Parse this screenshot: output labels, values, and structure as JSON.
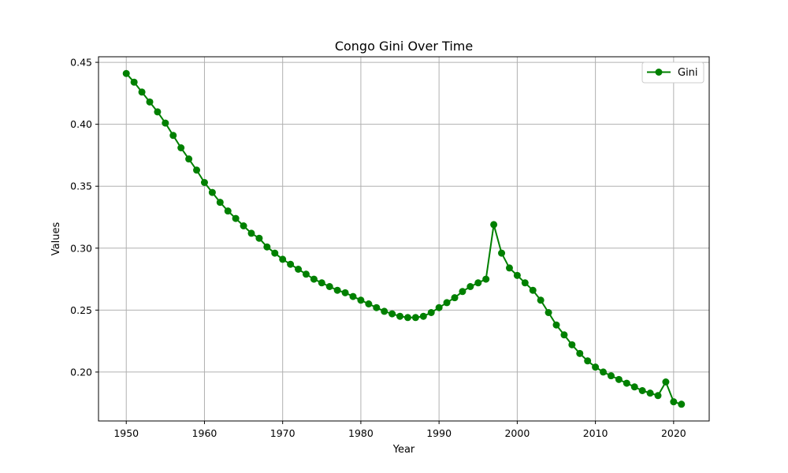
{
  "chart_data": {
    "type": "line",
    "title": "Congo Gini Over Time",
    "xlabel": "Year",
    "ylabel": "Values",
    "xlim": [
      1946.45,
      2024.55
    ],
    "ylim": [
      0.1605,
      0.4545
    ],
    "xticks": [
      1950,
      1960,
      1970,
      1980,
      1990,
      2000,
      2010,
      2020
    ],
    "yticks": [
      0.2,
      0.25,
      0.3,
      0.35,
      0.4,
      0.45
    ],
    "ytick_labels": [
      "0.20",
      "0.25",
      "0.30",
      "0.35",
      "0.40",
      "0.45"
    ],
    "grid": true,
    "legend": "top-right",
    "color": "#008000",
    "series": [
      {
        "name": "Gini",
        "x": [
          1950,
          1951,
          1952,
          1953,
          1954,
          1955,
          1956,
          1957,
          1958,
          1959,
          1960,
          1961,
          1962,
          1963,
          1964,
          1965,
          1966,
          1967,
          1968,
          1969,
          1970,
          1971,
          1972,
          1973,
          1974,
          1975,
          1976,
          1977,
          1978,
          1979,
          1980,
          1981,
          1982,
          1983,
          1984,
          1985,
          1986,
          1987,
          1988,
          1989,
          1990,
          1991,
          1992,
          1993,
          1994,
          1995,
          1996,
          1997,
          1998,
          1999,
          2000,
          2001,
          2002,
          2003,
          2004,
          2005,
          2006,
          2007,
          2008,
          2009,
          2010,
          2011,
          2012,
          2013,
          2014,
          2015,
          2016,
          2017,
          2018,
          2019,
          2020,
          2021
        ],
        "values": [
          0.441,
          0.434,
          0.426,
          0.418,
          0.41,
          0.401,
          0.391,
          0.381,
          0.372,
          0.363,
          0.353,
          0.345,
          0.337,
          0.33,
          0.324,
          0.318,
          0.312,
          0.308,
          0.301,
          0.296,
          0.291,
          0.287,
          0.283,
          0.279,
          0.275,
          0.272,
          0.269,
          0.266,
          0.264,
          0.261,
          0.258,
          0.255,
          0.252,
          0.249,
          0.247,
          0.245,
          0.244,
          0.244,
          0.245,
          0.248,
          0.252,
          0.256,
          0.26,
          0.265,
          0.269,
          0.272,
          0.275,
          0.319,
          0.296,
          0.284,
          0.278,
          0.272,
          0.266,
          0.258,
          0.248,
          0.238,
          0.23,
          0.222,
          0.215,
          0.209,
          0.204,
          0.2,
          0.197,
          0.194,
          0.191,
          0.188,
          0.185,
          0.183,
          0.181,
          0.192,
          0.176,
          0.174
        ]
      }
    ]
  }
}
